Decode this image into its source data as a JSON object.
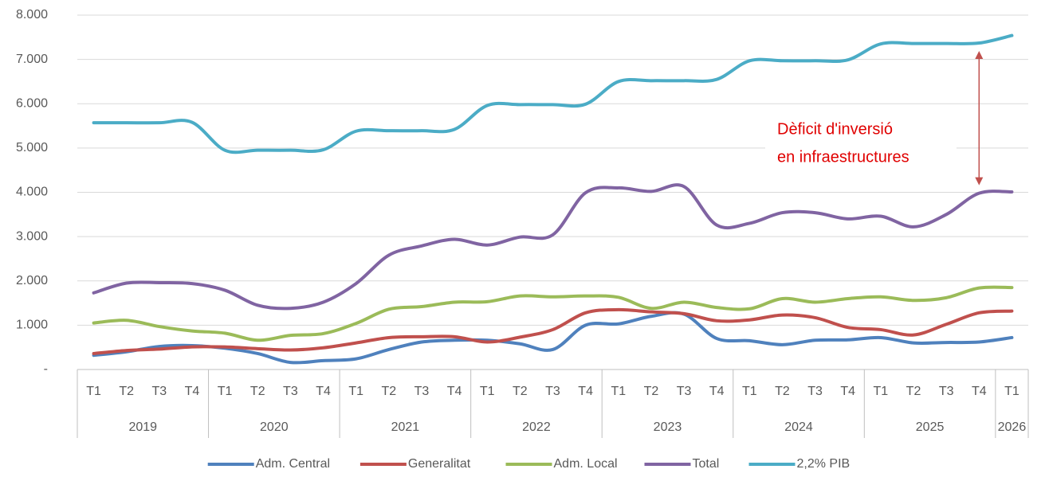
{
  "chart_data": {
    "type": "line",
    "categories": [
      "T1",
      "T2",
      "T3",
      "T4",
      "T1",
      "T2",
      "T3",
      "T4",
      "T1",
      "T2",
      "T3",
      "T4",
      "T1",
      "T2",
      "T3",
      "T4",
      "T1",
      "T2",
      "T3",
      "T4",
      "T1",
      "T2",
      "T3",
      "T4",
      "T1",
      "T2",
      "T3",
      "T4",
      "T1"
    ],
    "category_groups": [
      "2019",
      "2020",
      "2021",
      "2022",
      "2023",
      "2024",
      "2025",
      "2026"
    ],
    "ylim": [
      0,
      8000
    ],
    "yticks": [
      {
        "value": 0,
        "label": "-"
      },
      {
        "value": 1000,
        "label": "1.000"
      },
      {
        "value": 2000,
        "label": "2.000"
      },
      {
        "value": 3000,
        "label": "3.000"
      },
      {
        "value": 4000,
        "label": "4.000"
      },
      {
        "value": 5000,
        "label": "5.000"
      },
      {
        "value": 6000,
        "label": "6.000"
      },
      {
        "value": 7000,
        "label": "7.000"
      },
      {
        "value": 8000,
        "label": "8.000"
      }
    ],
    "grid": true,
    "legend": "bottom",
    "annotation": [
      "Dèficit d'inversió",
      "en infraestructures"
    ],
    "annotation_color": "#e00000",
    "series": [
      {
        "name": "Adm. Central",
        "color": "#4f81bd",
        "values": [
          320,
          400,
          520,
          540,
          480,
          360,
          160,
          200,
          240,
          450,
          620,
          660,
          660,
          580,
          450,
          1000,
          1030,
          1200,
          1250,
          700,
          650,
          560,
          660,
          670,
          720,
          600,
          610,
          620,
          720
        ]
      },
      {
        "name": "Generalitat",
        "color": "#c0504d",
        "values": [
          360,
          430,
          460,
          510,
          510,
          470,
          440,
          490,
          600,
          720,
          740,
          740,
          620,
          730,
          900,
          1280,
          1350,
          1300,
          1260,
          1100,
          1120,
          1230,
          1170,
          950,
          900,
          780,
          1020,
          1280,
          1320
        ]
      },
      {
        "name": "Adm. Local",
        "color": "#9bbb59",
        "values": [
          1050,
          1110,
          970,
          870,
          820,
          660,
          770,
          810,
          1040,
          1360,
          1420,
          1520,
          1530,
          1660,
          1640,
          1660,
          1630,
          1380,
          1520,
          1400,
          1370,
          1600,
          1520,
          1600,
          1640,
          1560,
          1620,
          1840,
          1850
        ]
      },
      {
        "name": "Total",
        "color": "#8064a2",
        "values": [
          1730,
          1950,
          1960,
          1940,
          1790,
          1450,
          1380,
          1520,
          1940,
          2580,
          2790,
          2940,
          2810,
          2990,
          3040,
          3990,
          4100,
          4020,
          4130,
          3260,
          3300,
          3540,
          3540,
          3400,
          3460,
          3220,
          3500,
          3980,
          4010
        ]
      },
      {
        "name": "2,2% PIB",
        "color": "#4bacc6",
        "values": [
          5570,
          5570,
          5570,
          5580,
          4950,
          4950,
          4950,
          4960,
          5380,
          5390,
          5390,
          5420,
          5960,
          5980,
          5980,
          5990,
          6500,
          6520,
          6520,
          6550,
          6970,
          6970,
          6970,
          6990,
          7350,
          7360,
          7360,
          7370,
          7540
        ]
      }
    ]
  }
}
